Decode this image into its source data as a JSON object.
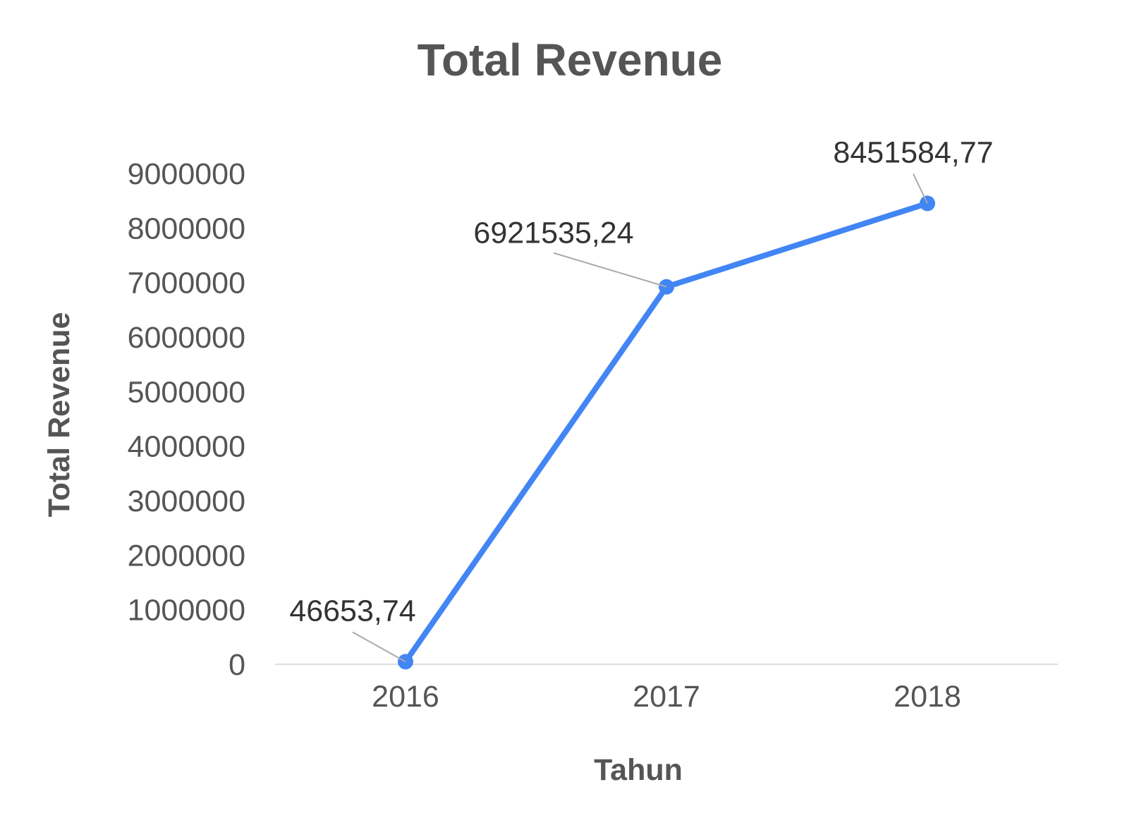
{
  "chart_data": {
    "type": "line",
    "title": "Total Revenue",
    "xlabel": "Tahun",
    "ylabel": "Total Revenue",
    "categories": [
      "2016",
      "2017",
      "2018"
    ],
    "series": [
      {
        "values": [
          46653.74,
          6921535.24,
          8451584.77
        ],
        "data_labels": [
          "46653,74",
          "6921535,24",
          "8451584,77"
        ],
        "color": "#4285f4"
      }
    ],
    "ylim": [
      0,
      9000000
    ],
    "yticks": [
      0,
      1000000,
      2000000,
      3000000,
      4000000,
      5000000,
      6000000,
      7000000,
      8000000,
      9000000
    ],
    "ytick_labels": [
      "0",
      "1000000",
      "2000000",
      "3000000",
      "4000000",
      "5000000",
      "6000000",
      "7000000",
      "8000000",
      "9000000"
    ],
    "grid": false,
    "legend": "none",
    "colors": {
      "line": "#4285f4",
      "text": "#555555",
      "label": "#333333",
      "axis": "#dddddd",
      "leader": "#aaaaaa"
    }
  }
}
